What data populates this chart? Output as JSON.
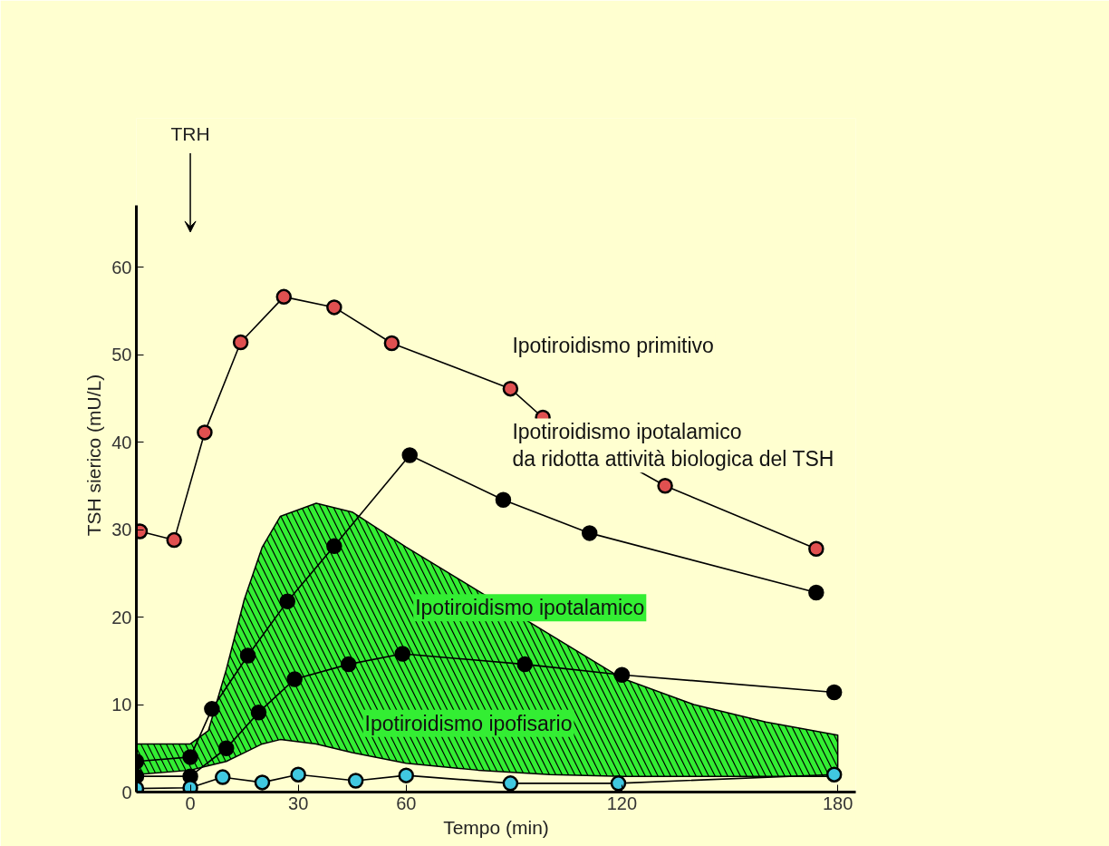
{
  "chart_data": {
    "type": "line",
    "xlabel": "Tempo (min)",
    "ylabel": "TSH sierico (mU/L)",
    "xlim": [
      -15,
      185
    ],
    "ylim": [
      0,
      77
    ],
    "xticks": [
      0,
      30,
      60,
      120,
      180
    ],
    "yticks": [
      0,
      10,
      20,
      30,
      40,
      50,
      60
    ],
    "grid": false,
    "marker": "circle",
    "line_style": "solid",
    "annotations": [
      "TRH"
    ],
    "series": [
      {
        "type": "line",
        "color": "#33ee33",
        "x": [
          -15,
          0,
          5,
          10,
          15,
          20,
          25,
          35,
          45,
          60,
          80,
          100,
          120,
          140,
          160,
          180
        ],
        "values": [
          null,
          null,
          null,
          null,
          null,
          null,
          null,
          null,
          null,
          null,
          null,
          null,
          null,
          null,
          null,
          null
        ],
        "lower": [
          2,
          2.5,
          3,
          3.5,
          4.5,
          5.5,
          6,
          5.5,
          4.5,
          3.3,
          2.5,
          2,
          1.8,
          1.8,
          1.8,
          1.8
        ],
        "upper": [
          5.5,
          5.5,
          7,
          14,
          22,
          28,
          31.5,
          33,
          32,
          28,
          23,
          18,
          13,
          10,
          8,
          6.5
        ]
      },
      {
        "name": "Ipotiroidismo primitivo",
        "color": "#e05050",
        "x": [
          -14,
          -4.5,
          4,
          14,
          26,
          40,
          56,
          89,
          98,
          132,
          174
        ],
        "values": [
          29.8,
          28.8,
          41.1,
          51.4,
          56.6,
          55.4,
          51.3,
          46.1,
          42.8,
          35,
          27.8
        ]
      },
      {
        "name": "Ipotiroidismo ipotalamico\nda ridotta attività biologica del TSH",
        "color": "#000000",
        "x": [
          -15,
          0,
          6,
          16,
          27,
          40,
          61,
          87,
          111,
          174
        ],
        "values": [
          3.5,
          4,
          9.5,
          15.6,
          21.8,
          28.1,
          38.5,
          33.4,
          29.6,
          22.8
        ]
      },
      {
        "name": "Ipotiroidismo ipotalamico",
        "color": "#000000",
        "x": [
          -15,
          0,
          10,
          19,
          29,
          44,
          59,
          93,
          120,
          179
        ],
        "values": [
          1.8,
          1.8,
          5,
          9.1,
          12.9,
          14.6,
          15.8,
          14.6,
          13.4,
          11.4
        ]
      },
      {
        "name": "Ipotiroidismo ipofisario",
        "color": "#40c8e0",
        "x": [
          -15,
          0,
          9,
          20,
          30,
          46,
          60,
          89,
          119,
          179
        ],
        "values": [
          0.4,
          0.5,
          1.7,
          1.1,
          2,
          1.3,
          1.9,
          1,
          1,
          2
        ]
      }
    ]
  }
}
